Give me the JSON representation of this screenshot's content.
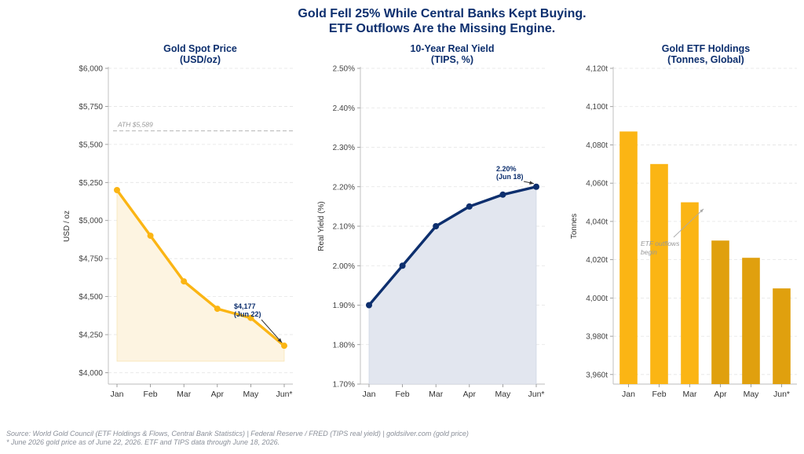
{
  "title_line1": "Gold Fell 25% While Central Banks Kept Buying.",
  "title_line2": "ETF Outflows Are the Missing Engine.",
  "footer": {
    "source": "Source: World Gold Council (ETF Holdings & Flows, Central Bank Statistics) | Federal Reserve / FRED (TIPS real yield) | goldsilver.com (gold price)",
    "note": "* June 2026 gold price as of June 22, 2026. ETF and TIPS data through June 18, 2026."
  },
  "colors": {
    "title": "#0d2f6e",
    "gold": "#fbb514",
    "gold_dark": "#e0a00e",
    "gold_fill": "#fdf4e1",
    "navy": "#0d2f6e",
    "navy_fill": "#e2e6ef",
    "grid": "#e3e3e3",
    "muted": "#999999"
  },
  "chart_data": [
    {
      "type": "line",
      "title_line1": "Gold Spot Price",
      "title_line2": "(USD/oz)",
      "ylabel": "USD / oz",
      "categories": [
        "Jan",
        "Feb",
        "Mar",
        "Apr",
        "May",
        "Jun*"
      ],
      "values": [
        5200,
        4900,
        4600,
        4420,
        4360,
        4177
      ],
      "ylim": [
        3925,
        6000
      ],
      "yticks": [
        4000,
        4250,
        4500,
        4750,
        5000,
        5250,
        5500,
        5750,
        6000
      ],
      "ytick_labels": [
        "$4,000",
        "$4,250",
        "$4,500",
        "$4,750",
        "$5,000",
        "$5,250",
        "$5,500",
        "$5,750",
        "$6,000"
      ],
      "fill_base": 4075,
      "reference_line": {
        "value": 5589,
        "label": "ATH $5,589"
      },
      "annotation": {
        "line1": "$4,177",
        "line2": "(Jun 22)",
        "target_index": 5
      },
      "grid": true
    },
    {
      "type": "line",
      "title_line1": "10-Year Real Yield",
      "title_line2": "(TIPS, %)",
      "ylabel": "Real Yield (%)",
      "categories": [
        "Jan",
        "Feb",
        "Mar",
        "Apr",
        "May",
        "Jun*"
      ],
      "values": [
        1.9,
        2.0,
        2.1,
        2.15,
        2.18,
        2.2
      ],
      "ylim": [
        1.7,
        2.5
      ],
      "yticks": [
        1.7,
        1.8,
        1.9,
        2.0,
        2.1,
        2.2,
        2.3,
        2.4,
        2.5
      ],
      "ytick_labels": [
        "1.70%",
        "1.80%",
        "1.90%",
        "2.00%",
        "2.10%",
        "2.20%",
        "2.30%",
        "2.40%",
        "2.50%"
      ],
      "fill_base": 1.7,
      "annotation": {
        "line1": "2.20%",
        "line2": "(Jun 18)",
        "target_index": 5
      },
      "grid": true
    },
    {
      "type": "bar",
      "title_line1": "Gold ETF Holdings",
      "title_line2": "(Tonnes, Global)",
      "ylabel": "Tonnes",
      "categories": [
        "Jan",
        "Feb",
        "Mar",
        "Apr",
        "May",
        "Jun*"
      ],
      "values": [
        4087,
        4070,
        4050,
        4030,
        4021,
        4005
      ],
      "ylim": [
        3955,
        4120
      ],
      "yticks": [
        3960,
        3980,
        4000,
        4020,
        4040,
        4060,
        4080,
        4100,
        4120
      ],
      "ytick_labels": [
        "3,960t",
        "3,980t",
        "4,000t",
        "4,020t",
        "4,040t",
        "4,060t",
        "4,080t",
        "4,100t",
        "4,120t"
      ],
      "bar_shades": [
        "gold",
        "gold",
        "gold",
        "dark",
        "dark",
        "dark"
      ],
      "annotation": {
        "line1": "ETF outflows",
        "line2": "begin"
      },
      "grid": true
    }
  ]
}
